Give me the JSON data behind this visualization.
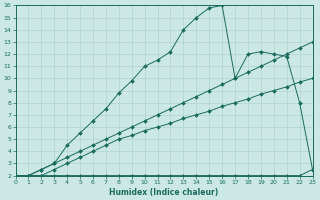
{
  "xlabel": "Humidex (Indice chaleur)",
  "xlim": [
    0,
    23
  ],
  "ylim": [
    2,
    16
  ],
  "xticks": [
    0,
    1,
    2,
    3,
    4,
    5,
    6,
    7,
    8,
    9,
    10,
    11,
    12,
    13,
    14,
    15,
    16,
    17,
    18,
    19,
    20,
    21,
    22,
    23
  ],
  "yticks": [
    2,
    3,
    4,
    5,
    6,
    7,
    8,
    9,
    10,
    11,
    12,
    13,
    14,
    15,
    16
  ],
  "bg_color": "#cce8e4",
  "line_color": "#1a6b5e",
  "grid_color": "#aed4cf",
  "line1_y": [
    2.0,
    2.0,
    2.0,
    2.0,
    2.0,
    2.0,
    2.0,
    2.0,
    2.0,
    2.0,
    2.0,
    2.0,
    2.0,
    2.0,
    2.0,
    2.0,
    2.0,
    2.0,
    2.0,
    2.0,
    2.0,
    2.0,
    2.0,
    2.5
  ],
  "line2_y": [
    2.0,
    2.0,
    2.0,
    2.5,
    3.0,
    3.5,
    4.0,
    4.5,
    5.0,
    5.3,
    5.7,
    6.0,
    6.3,
    6.7,
    7.0,
    7.3,
    7.7,
    8.0,
    8.3,
    8.7,
    9.0,
    9.3,
    9.7,
    10.0
  ],
  "line3_y": [
    2.0,
    2.0,
    2.5,
    3.0,
    3.5,
    4.0,
    4.5,
    5.0,
    5.5,
    6.0,
    6.5,
    7.0,
    7.5,
    8.0,
    8.5,
    9.0,
    9.5,
    10.0,
    10.5,
    11.0,
    11.5,
    12.0,
    12.5,
    13.0
  ],
  "line_main_y": [
    2.0,
    2.0,
    2.5,
    3.0,
    4.5,
    5.5,
    6.5,
    7.5,
    8.8,
    9.8,
    11.0,
    11.5,
    12.2,
    14.0,
    15.0,
    15.8,
    16.0,
    10.0,
    12.0,
    12.2,
    12.0,
    11.8,
    8.0,
    2.5
  ]
}
